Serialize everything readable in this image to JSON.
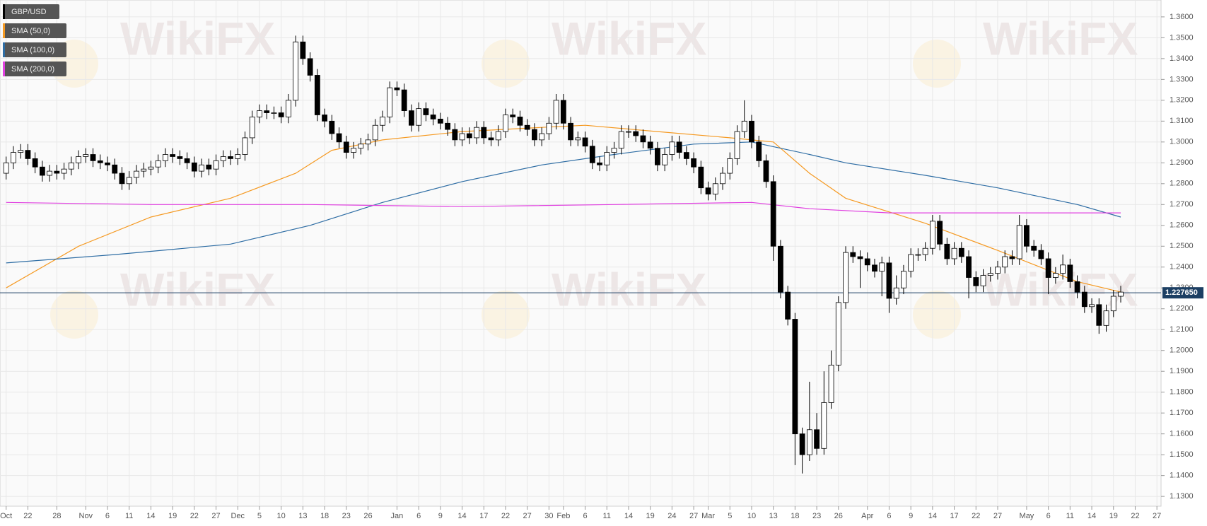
{
  "chart_data": {
    "type": "candlestick",
    "symbol": "GBP/USD",
    "up_color": "#ffffff",
    "down_color": "#000000",
    "grid": true,
    "watermark": "WikiFX",
    "open": [
      1.285,
      1.29,
      1.295,
      1.296,
      1.292,
      1.288,
      1.284,
      1.286,
      1.285,
      1.287,
      1.29,
      1.293,
      1.294,
      1.291,
      1.29,
      1.289,
      1.285,
      1.28,
      1.283,
      1.286,
      1.287,
      1.288,
      1.291,
      1.294,
      1.293,
      1.292,
      1.29,
      1.286,
      1.289,
      1.287,
      1.291,
      1.293,
      1.292,
      1.294,
      1.302,
      1.312,
      1.315,
      1.314,
      1.314,
      1.312,
      1.32,
      1.348,
      1.34,
      1.332,
      1.313,
      1.31,
      1.304,
      1.3,
      1.295,
      1.297,
      1.299,
      1.301,
      1.308,
      1.312,
      1.326,
      1.325,
      1.315,
      1.308,
      1.316,
      1.313,
      1.311,
      1.309,
      1.306,
      1.301,
      1.304,
      1.302,
      1.307,
      1.302,
      1.301,
      1.305,
      1.313,
      1.312,
      1.308,
      1.306,
      1.301,
      1.304,
      1.309,
      1.32,
      1.309,
      1.301,
      1.302,
      1.298,
      1.29,
      1.289,
      1.295,
      1.297,
      1.305,
      1.305,
      1.303,
      1.3,
      1.297,
      1.289,
      1.294,
      1.3,
      1.295,
      1.292,
      1.288,
      1.278,
      1.275,
      1.28,
      1.285,
      1.292,
      1.305,
      1.31,
      1.3,
      1.291,
      1.281,
      1.25,
      1.228,
      1.215,
      1.16,
      1.15,
      1.162,
      1.153,
      1.175,
      1.193,
      1.223,
      1.247,
      1.245,
      1.244,
      1.241,
      1.238,
      1.242,
      1.225,
      1.23,
      1.238,
      1.246,
      1.246,
      1.249,
      1.262,
      1.251,
      1.244,
      1.249,
      1.245,
      1.235,
      1.231,
      1.236,
      1.237,
      1.24,
      1.245,
      1.244,
      1.26,
      1.25,
      1.248,
      1.244,
      1.235,
      1.237,
      1.241,
      1.233,
      1.228,
      1.221,
      1.222,
      1.212,
      1.219,
      1.226
    ],
    "high": [
      1.293,
      1.298,
      1.299,
      1.299,
      1.295,
      1.291,
      1.289,
      1.289,
      1.29,
      1.293,
      1.296,
      1.297,
      1.297,
      1.294,
      1.293,
      1.292,
      1.288,
      1.286,
      1.289,
      1.29,
      1.291,
      1.294,
      1.297,
      1.297,
      1.296,
      1.295,
      1.293,
      1.292,
      1.292,
      1.294,
      1.296,
      1.296,
      1.297,
      1.305,
      1.315,
      1.318,
      1.318,
      1.317,
      1.317,
      1.323,
      1.351,
      1.351,
      1.343,
      1.335,
      1.316,
      1.313,
      1.307,
      1.303,
      1.3,
      1.302,
      1.304,
      1.311,
      1.315,
      1.329,
      1.329,
      1.328,
      1.318,
      1.319,
      1.319,
      1.316,
      1.314,
      1.312,
      1.309,
      1.307,
      1.307,
      1.31,
      1.31,
      1.305,
      1.308,
      1.316,
      1.316,
      1.315,
      1.311,
      1.309,
      1.307,
      1.312,
      1.323,
      1.323,
      1.312,
      1.305,
      1.305,
      1.301,
      1.293,
      1.298,
      1.3,
      1.308,
      1.308,
      1.308,
      1.306,
      1.303,
      1.3,
      1.297,
      1.303,
      1.303,
      1.298,
      1.295,
      1.291,
      1.281,
      1.283,
      1.288,
      1.295,
      1.308,
      1.32,
      1.313,
      1.303,
      1.294,
      1.284,
      1.253,
      1.231,
      1.218,
      1.163,
      1.185,
      1.17,
      1.19,
      1.2,
      1.226,
      1.25,
      1.25,
      1.248,
      1.247,
      1.244,
      1.245,
      1.245,
      1.236,
      1.241,
      1.249,
      1.249,
      1.252,
      1.265,
      1.265,
      1.254,
      1.252,
      1.252,
      1.248,
      1.238,
      1.239,
      1.24,
      1.243,
      1.248,
      1.248,
      1.265,
      1.263,
      1.253,
      1.251,
      1.247,
      1.24,
      1.246,
      1.244,
      1.236,
      1.231,
      1.225,
      1.225,
      1.222,
      1.229,
      1.231
    ],
    "low": [
      1.282,
      1.287,
      1.292,
      1.289,
      1.285,
      1.281,
      1.281,
      1.282,
      1.282,
      1.284,
      1.287,
      1.29,
      1.288,
      1.287,
      1.286,
      1.282,
      1.277,
      1.277,
      1.28,
      1.283,
      1.284,
      1.285,
      1.288,
      1.29,
      1.289,
      1.287,
      1.283,
      1.283,
      1.284,
      1.284,
      1.288,
      1.289,
      1.289,
      1.291,
      1.299,
      1.309,
      1.311,
      1.311,
      1.309,
      1.309,
      1.317,
      1.337,
      1.329,
      1.31,
      1.307,
      1.301,
      1.297,
      1.292,
      1.292,
      1.294,
      1.296,
      1.298,
      1.305,
      1.309,
      1.322,
      1.312,
      1.305,
      1.305,
      1.31,
      1.308,
      1.306,
      1.303,
      1.298,
      1.298,
      1.299,
      1.299,
      1.299,
      1.298,
      1.298,
      1.302,
      1.309,
      1.305,
      1.303,
      1.298,
      1.298,
      1.301,
      1.306,
      1.306,
      1.298,
      1.298,
      1.295,
      1.287,
      1.286,
      1.286,
      1.292,
      1.294,
      1.302,
      1.3,
      1.297,
      1.294,
      1.286,
      1.286,
      1.291,
      1.292,
      1.289,
      1.285,
      1.275,
      1.272,
      1.272,
      1.277,
      1.282,
      1.289,
      1.302,
      1.297,
      1.288,
      1.278,
      1.243,
      1.225,
      1.212,
      1.145,
      1.141,
      1.147,
      1.15,
      1.15,
      1.172,
      1.19,
      1.22,
      1.242,
      1.23,
      1.238,
      1.235,
      1.226,
      1.218,
      1.222,
      1.227,
      1.235,
      1.243,
      1.243,
      1.246,
      1.248,
      1.241,
      1.241,
      1.242,
      1.225,
      1.228,
      1.228,
      1.233,
      1.234,
      1.237,
      1.241,
      1.241,
      1.247,
      1.245,
      1.241,
      1.227,
      1.232,
      1.234,
      1.23,
      1.225,
      1.218,
      1.218,
      1.208,
      1.209,
      1.216,
      1.223
    ],
    "close": [
      1.29,
      1.295,
      1.296,
      1.292,
      1.288,
      1.284,
      1.286,
      1.285,
      1.287,
      1.29,
      1.293,
      1.294,
      1.291,
      1.29,
      1.289,
      1.285,
      1.28,
      1.283,
      1.286,
      1.287,
      1.288,
      1.291,
      1.294,
      1.293,
      1.292,
      1.29,
      1.286,
      1.289,
      1.287,
      1.291,
      1.293,
      1.292,
      1.294,
      1.302,
      1.312,
      1.315,
      1.314,
      1.314,
      1.312,
      1.32,
      1.348,
      1.34,
      1.332,
      1.313,
      1.31,
      1.304,
      1.3,
      1.295,
      1.297,
      1.299,
      1.301,
      1.308,
      1.312,
      1.326,
      1.325,
      1.315,
      1.308,
      1.316,
      1.313,
      1.311,
      1.309,
      1.306,
      1.301,
      1.304,
      1.302,
      1.307,
      1.302,
      1.301,
      1.305,
      1.313,
      1.312,
      1.308,
      1.306,
      1.301,
      1.304,
      1.309,
      1.32,
      1.309,
      1.301,
      1.302,
      1.298,
      1.29,
      1.289,
      1.295,
      1.297,
      1.305,
      1.305,
      1.303,
      1.3,
      1.297,
      1.289,
      1.294,
      1.3,
      1.295,
      1.292,
      1.288,
      1.278,
      1.275,
      1.28,
      1.285,
      1.292,
      1.305,
      1.31,
      1.3,
      1.291,
      1.281,
      1.25,
      1.228,
      1.215,
      1.16,
      1.15,
      1.162,
      1.153,
      1.175,
      1.193,
      1.223,
      1.247,
      1.245,
      1.244,
      1.241,
      1.238,
      1.242,
      1.225,
      1.23,
      1.238,
      1.246,
      1.246,
      1.249,
      1.262,
      1.251,
      1.244,
      1.249,
      1.245,
      1.235,
      1.231,
      1.236,
      1.237,
      1.24,
      1.245,
      1.244,
      1.26,
      1.25,
      1.248,
      1.244,
      1.235,
      1.237,
      1.241,
      1.233,
      1.228,
      1.221,
      1.222,
      1.212,
      1.219,
      1.226,
      1.228
    ],
    "series": [
      {
        "name": "SMA (50,0)",
        "color": "#f59a23",
        "x": [
          0,
          10,
          20,
          31,
          40,
          45,
          52,
          63,
          74,
          80,
          90,
          100,
          106,
          111,
          116,
          127,
          137,
          148,
          154
        ],
        "values": [
          1.23,
          1.25,
          1.264,
          1.273,
          1.285,
          1.296,
          1.301,
          1.305,
          1.307,
          1.308,
          1.305,
          1.302,
          1.3,
          1.285,
          1.273,
          1.261,
          1.248,
          1.233,
          1.228
        ]
      },
      {
        "name": "SMA (100,0)",
        "color": "#2e6da4",
        "x": [
          0,
          15,
          31,
          42,
          52,
          63,
          74,
          84,
          95,
          103,
          111,
          116,
          127,
          137,
          148,
          154
        ],
        "values": [
          1.242,
          1.246,
          1.251,
          1.26,
          1.271,
          1.281,
          1.289,
          1.294,
          1.299,
          1.3,
          1.294,
          1.29,
          1.284,
          1.278,
          1.27,
          1.264
        ]
      },
      {
        "name": "SMA (200,0)",
        "color": "#e040e0",
        "x": [
          0,
          20,
          42,
          63,
          84,
          103,
          111,
          122,
          137,
          154
        ],
        "values": [
          1.271,
          1.27,
          1.27,
          1.269,
          1.27,
          1.271,
          1.268,
          1.266,
          1.266,
          1.266
        ]
      }
    ],
    "price_line": {
      "value": 1.22765,
      "label": "1.227650"
    },
    "xlim": [
      -0.85,
      159.57
    ],
    "ylim": [
      1.1253,
      1.3681
    ],
    "yticks": [
      {
        "value": 1.36,
        "label": "1.3600"
      },
      {
        "value": 1.35,
        "label": "1.3500"
      },
      {
        "value": 1.34,
        "label": "1.3400"
      },
      {
        "value": 1.33,
        "label": "1.3300"
      },
      {
        "value": 1.32,
        "label": "1.3200"
      },
      {
        "value": 1.31,
        "label": "1.3100"
      },
      {
        "value": 1.3,
        "label": "1.3000"
      },
      {
        "value": 1.29,
        "label": "1.2900"
      },
      {
        "value": 1.28,
        "label": "1.2800"
      },
      {
        "value": 1.27,
        "label": "1.2700"
      },
      {
        "value": 1.26,
        "label": "1.2600"
      },
      {
        "value": 1.25,
        "label": "1.2500"
      },
      {
        "value": 1.24,
        "label": "1.2400"
      },
      {
        "value": 1.23,
        "label": "1.2300"
      },
      {
        "value": 1.22,
        "label": "1.2200"
      },
      {
        "value": 1.21,
        "label": "1.2100"
      },
      {
        "value": 1.2,
        "label": "1.2000"
      },
      {
        "value": 1.19,
        "label": "1.1900"
      },
      {
        "value": 1.18,
        "label": "1.1800"
      },
      {
        "value": 1.17,
        "label": "1.1700"
      },
      {
        "value": 1.16,
        "label": "1.1600"
      },
      {
        "value": 1.15,
        "label": "1.1500"
      },
      {
        "value": 1.14,
        "label": "1.1400"
      },
      {
        "value": 1.13,
        "label": "1.1300"
      }
    ],
    "xticks": [
      {
        "value": 0,
        "label": "Oct"
      },
      {
        "value": 3,
        "label": "22"
      },
      {
        "value": 7,
        "label": "28"
      },
      {
        "value": 11,
        "label": "Nov"
      },
      {
        "value": 14,
        "label": "6"
      },
      {
        "value": 17,
        "label": "11"
      },
      {
        "value": 20,
        "label": "14"
      },
      {
        "value": 23,
        "label": "19"
      },
      {
        "value": 26,
        "label": "22"
      },
      {
        "value": 29,
        "label": "27"
      },
      {
        "value": 32,
        "label": "Dec"
      },
      {
        "value": 35,
        "label": "5"
      },
      {
        "value": 38,
        "label": "10"
      },
      {
        "value": 41,
        "label": "13"
      },
      {
        "value": 44,
        "label": "18"
      },
      {
        "value": 47,
        "label": "23"
      },
      {
        "value": 50,
        "label": "26"
      },
      {
        "value": 54,
        "label": "Jan"
      },
      {
        "value": 57,
        "label": "6"
      },
      {
        "value": 60,
        "label": "9"
      },
      {
        "value": 63,
        "label": "14"
      },
      {
        "value": 66,
        "label": "17"
      },
      {
        "value": 69,
        "label": "22"
      },
      {
        "value": 72,
        "label": "27"
      },
      {
        "value": 75,
        "label": "30"
      },
      {
        "value": 77,
        "label": "Feb"
      },
      {
        "value": 80,
        "label": "6"
      },
      {
        "value": 83,
        "label": "11"
      },
      {
        "value": 86,
        "label": "14"
      },
      {
        "value": 89,
        "label": "19"
      },
      {
        "value": 92,
        "label": "24"
      },
      {
        "value": 95,
        "label": "27"
      },
      {
        "value": 97,
        "label": "Mar"
      },
      {
        "value": 100,
        "label": "5"
      },
      {
        "value": 103,
        "label": "10"
      },
      {
        "value": 106,
        "label": "13"
      },
      {
        "value": 109,
        "label": "18"
      },
      {
        "value": 112,
        "label": "23"
      },
      {
        "value": 115,
        "label": "26"
      },
      {
        "value": 119,
        "label": "Apr"
      },
      {
        "value": 122,
        "label": "6"
      },
      {
        "value": 125,
        "label": "9"
      },
      {
        "value": 128,
        "label": "14"
      },
      {
        "value": 131,
        "label": "17"
      },
      {
        "value": 134,
        "label": "22"
      },
      {
        "value": 137,
        "label": "27"
      },
      {
        "value": 141,
        "label": "May"
      },
      {
        "value": 144,
        "label": "6"
      },
      {
        "value": 147,
        "label": "11"
      },
      {
        "value": 150,
        "label": "14"
      },
      {
        "value": 153,
        "label": "19"
      },
      {
        "value": 156,
        "label": "22"
      },
      {
        "value": 159,
        "label": "27"
      }
    ]
  }
}
